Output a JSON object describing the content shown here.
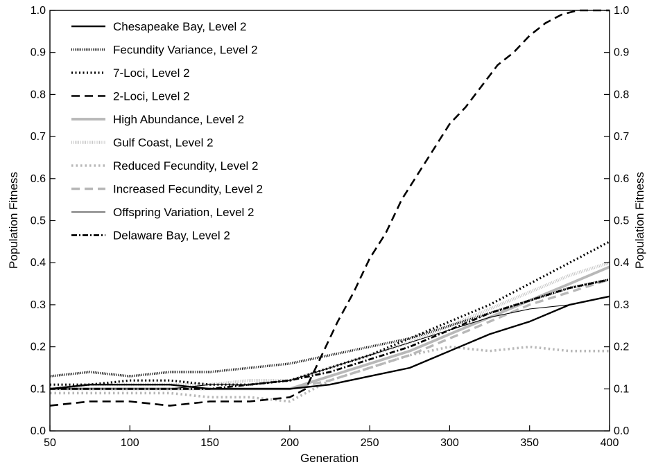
{
  "chart_data": {
    "type": "line",
    "title": "",
    "xlabel": "Generation",
    "ylabel": "Population Fitness",
    "ylabel_right": "Population Fitness",
    "xlim": [
      50,
      400
    ],
    "ylim": [
      0.0,
      1.0
    ],
    "x_ticks": [
      50,
      100,
      150,
      200,
      250,
      300,
      350,
      400
    ],
    "x_tick_labels": [
      "50",
      "100",
      "150",
      "200",
      "250",
      "300",
      "350",
      "400"
    ],
    "y_ticks": [
      0.0,
      0.1,
      0.2,
      0.3,
      0.4,
      0.5,
      0.6,
      0.7,
      0.8,
      0.9,
      1.0
    ],
    "y_tick_labels": [
      "0.0",
      "0.1",
      "0.2",
      "0.3",
      "0.4",
      "0.5",
      "0.6",
      "0.7",
      "0.8",
      "0.9",
      "1.0"
    ],
    "grid": false,
    "legend_position": "top-left",
    "series": [
      {
        "name": "Chesapeake Bay, Level 2",
        "style": "solid-thick",
        "color": "#000000",
        "x": [
          50,
          75,
          100,
          125,
          150,
          175,
          200,
          225,
          250,
          275,
          300,
          325,
          350,
          375,
          400
        ],
        "values": [
          0.1,
          0.11,
          0.11,
          0.11,
          0.1,
          0.1,
          0.1,
          0.11,
          0.13,
          0.15,
          0.19,
          0.23,
          0.26,
          0.3,
          0.32
        ]
      },
      {
        "name": "Fecundity Variance, Level 2",
        "style": "dense-dots",
        "color": "#000000",
        "x": [
          50,
          75,
          100,
          125,
          150,
          175,
          200,
          225,
          250,
          275,
          300,
          325,
          350,
          375,
          400
        ],
        "values": [
          0.13,
          0.14,
          0.13,
          0.14,
          0.14,
          0.15,
          0.16,
          0.18,
          0.2,
          0.22,
          0.25,
          0.28,
          0.31,
          0.34,
          0.36
        ]
      },
      {
        "name": "7-Loci, Level 2",
        "style": "dotted",
        "color": "#000000",
        "x": [
          50,
          75,
          100,
          125,
          150,
          175,
          200,
          225,
          250,
          275,
          300,
          325,
          350,
          375,
          400
        ],
        "values": [
          0.11,
          0.11,
          0.12,
          0.12,
          0.11,
          0.11,
          0.12,
          0.15,
          0.18,
          0.22,
          0.26,
          0.3,
          0.35,
          0.4,
          0.45
        ]
      },
      {
        "name": "2-Loci, Level 2",
        "style": "dashed",
        "color": "#000000",
        "x": [
          50,
          75,
          100,
          125,
          150,
          175,
          200,
          210,
          220,
          230,
          240,
          250,
          260,
          270,
          280,
          290,
          300,
          310,
          320,
          330,
          340,
          350,
          360,
          370,
          380,
          390,
          400
        ],
        "values": [
          0.06,
          0.07,
          0.07,
          0.06,
          0.07,
          0.07,
          0.08,
          0.1,
          0.18,
          0.26,
          0.33,
          0.41,
          0.47,
          0.55,
          0.61,
          0.67,
          0.73,
          0.77,
          0.82,
          0.87,
          0.9,
          0.94,
          0.97,
          0.99,
          1.0,
          1.0,
          1.0
        ]
      },
      {
        "name": "High Abundance, Level 2",
        "style": "solid-gray",
        "color": "#b8b8b8",
        "x": [
          50,
          75,
          100,
          125,
          150,
          175,
          200,
          225,
          250,
          275,
          300,
          325,
          350,
          375,
          400
        ],
        "values": [
          0.1,
          0.1,
          0.1,
          0.1,
          0.1,
          0.1,
          0.1,
          0.13,
          0.16,
          0.19,
          0.23,
          0.27,
          0.31,
          0.35,
          0.39
        ]
      },
      {
        "name": "Gulf Coast, Level 2",
        "style": "gray-dense-dots",
        "color": "#c0c0c0",
        "x": [
          50,
          75,
          100,
          125,
          150,
          175,
          200,
          225,
          250,
          275,
          300,
          325,
          350,
          375,
          400
        ],
        "values": [
          0.1,
          0.11,
          0.11,
          0.11,
          0.11,
          0.12,
          0.12,
          0.15,
          0.18,
          0.21,
          0.25,
          0.29,
          0.33,
          0.37,
          0.4
        ]
      },
      {
        "name": "Reduced Fecundity, Level 2",
        "style": "gray-dotted",
        "color": "#b8b8b8",
        "x": [
          50,
          75,
          100,
          125,
          150,
          175,
          200,
          225,
          250,
          275,
          300,
          325,
          350,
          375,
          400
        ],
        "values": [
          0.09,
          0.09,
          0.09,
          0.09,
          0.08,
          0.08,
          0.07,
          0.12,
          0.15,
          0.18,
          0.2,
          0.19,
          0.2,
          0.19,
          0.19
        ]
      },
      {
        "name": "Increased Fecundity, Level 2",
        "style": "gray-dashed",
        "color": "#b8b8b8",
        "x": [
          50,
          75,
          100,
          125,
          150,
          175,
          200,
          225,
          250,
          275,
          300,
          325,
          350,
          375,
          400
        ],
        "values": [
          0.1,
          0.1,
          0.1,
          0.1,
          0.1,
          0.1,
          0.1,
          0.12,
          0.15,
          0.18,
          0.22,
          0.26,
          0.3,
          0.33,
          0.36
        ]
      },
      {
        "name": "Offspring Variation, Level 2",
        "style": "solid-thin",
        "color": "#000000",
        "x": [
          50,
          75,
          100,
          125,
          150,
          175,
          200,
          225,
          250,
          275,
          300,
          325,
          350,
          375,
          400
        ],
        "values": [
          0.1,
          0.1,
          0.1,
          0.1,
          0.11,
          0.11,
          0.12,
          0.15,
          0.18,
          0.21,
          0.24,
          0.27,
          0.29,
          0.3,
          0.32
        ]
      },
      {
        "name": "Delaware Bay, Level 2",
        "style": "dash-dot",
        "color": "#000000",
        "x": [
          50,
          75,
          100,
          125,
          150,
          175,
          200,
          225,
          250,
          275,
          300,
          325,
          350,
          375,
          400
        ],
        "values": [
          0.1,
          0.1,
          0.1,
          0.1,
          0.1,
          0.11,
          0.12,
          0.14,
          0.17,
          0.2,
          0.24,
          0.28,
          0.31,
          0.34,
          0.36
        ]
      }
    ]
  }
}
